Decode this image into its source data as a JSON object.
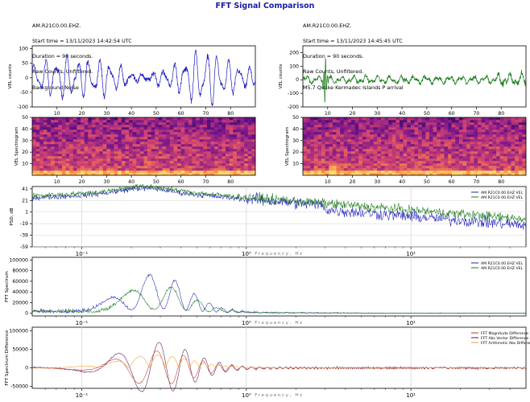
{
  "figure": {
    "title": "FFT Signal Comparison",
    "left_header": [
      "AM.R21C0.00.EHZ.",
      "Start time = 13/11/2023 14:42:54 UTC",
      "Duration = 90 seconds.",
      "Raw Counts, Unfiltered.",
      "Background Noise"
    ],
    "right_header": [
      "AM.R21C0.00.EHZ.",
      "Start time = 13/11/2023 14:45:45 UTC",
      "Duration = 90 seconds.",
      "Raw Counts, Unfiltered.",
      "M5.7 Quake Kermadec Islands P arrival"
    ]
  },
  "colors": {
    "blue": "#1f1fbf",
    "green": "#1a7a1a",
    "diff_magnitude": "#c0392b",
    "diff_vector": "#5b1060",
    "diff_arith": "#f0a030"
  },
  "chart_data": [
    {
      "type": "line",
      "panel": "left-waveform",
      "ylabel": "VEL counts",
      "xlim": [
        0,
        90
      ],
      "ylim": [
        -100,
        110
      ],
      "xticks": [
        10,
        20,
        30,
        40,
        50,
        60,
        70,
        80
      ],
      "yticks": [
        -100,
        -50,
        0,
        50,
        100
      ],
      "series": [
        {
          "color": "blue",
          "amplitude": 45,
          "peak": 95
        }
      ]
    },
    {
      "type": "line",
      "panel": "right-waveform",
      "ylabel": "VEL counts",
      "xlim": [
        0,
        90
      ],
      "ylim": [
        -200,
        250
      ],
      "xticks": [
        10,
        20,
        30,
        40,
        50,
        60,
        70,
        80
      ],
      "yticks": [
        -200,
        -100,
        0,
        100,
        200
      ],
      "series": [
        {
          "color": "green",
          "amplitude": 30,
          "spike_time": 9,
          "spike": 230
        }
      ]
    },
    {
      "type": "heatmap",
      "panel": "left-spectrogram",
      "ylabel": "VEL Spectrogram",
      "xlim": [
        0,
        90
      ],
      "ylim": [
        0,
        50
      ],
      "xticks": [
        10,
        20,
        30,
        40,
        50,
        60,
        70,
        80
      ],
      "yticks": [
        10,
        20,
        30,
        40,
        50
      ]
    },
    {
      "type": "heatmap",
      "panel": "right-spectrogram",
      "ylabel": "VEL Spectrogram",
      "xlim": [
        0,
        90
      ],
      "ylim": [
        0,
        50
      ],
      "xticks": [
        10,
        20,
        30,
        40,
        50,
        60,
        70,
        80
      ],
      "yticks": [
        10,
        20,
        30,
        40,
        50
      ]
    },
    {
      "type": "line",
      "panel": "psd",
      "xlabel": "Frequency, Hz",
      "ylabel": "PSD, dB",
      "x_scale": "log",
      "xlim": [
        0.05,
        50
      ],
      "ylim": [
        -59,
        45
      ],
      "xticks": [
        "10⁻¹",
        "10⁰",
        "10¹"
      ],
      "yticks": [
        -59,
        -39,
        -19,
        1,
        21,
        41
      ],
      "legend": [
        "AM.R21C0.00.EHZ VEL",
        "AM.R21C0.00.EHZ VEL"
      ],
      "legend_position": "top-right"
    },
    {
      "type": "line",
      "panel": "fft",
      "xlabel": "Frequency, Hz",
      "ylabel": "FFT Spectrum",
      "x_scale": "log",
      "xlim": [
        0.05,
        50
      ],
      "ylim": [
        -5000,
        105000
      ],
      "xticks": [
        "10⁻¹",
        "10⁰",
        "10¹"
      ],
      "yticks": [
        0,
        20000,
        40000,
        60000,
        80000,
        100000
      ],
      "legend": [
        "AM.R21C0.00.EHZ VEL",
        "AM.R21C0.00.EHZ VEL"
      ],
      "legend_position": "top-right"
    },
    {
      "type": "line",
      "panel": "fft-diff",
      "xlabel": "Frequency, Hz",
      "ylabel": "FFT Spectrum Difference",
      "x_scale": "log",
      "xlim": [
        0.05,
        50
      ],
      "ylim": [
        -55000,
        110000
      ],
      "xticks": [
        "10⁻¹",
        "10⁰",
        "10¹"
      ],
      "yticks": [
        -50000,
        0,
        50000,
        100000
      ],
      "legend": [
        "FFT Magnitude Difference",
        "FFT Abs Vector Difference",
        "FFT Arithmetic Abs Difference"
      ],
      "legend_position": "top-right"
    }
  ]
}
